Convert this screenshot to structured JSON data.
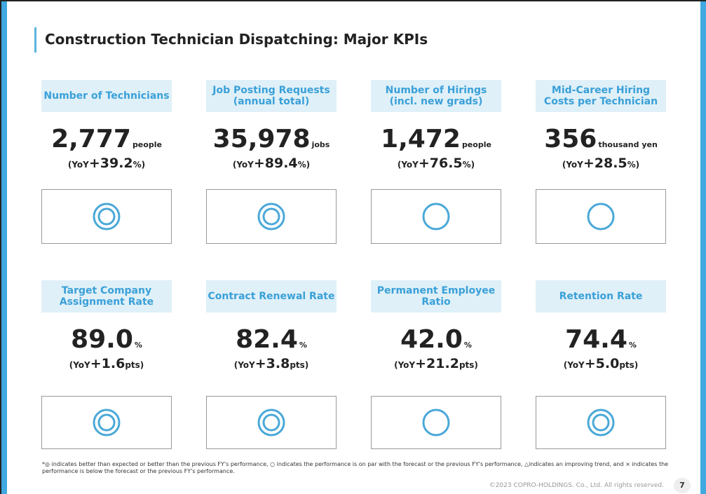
{
  "header": {
    "title": "Construction Technician Dispatching: Major KPIs"
  },
  "kpis": [
    {
      "label": "Number of Technicians",
      "value": "2,777",
      "unit": "people",
      "yoy": [
        "(YoY",
        "+39.2",
        "%)"
      ]
    },
    {
      "label": "Job Posting Requests (annual total)",
      "value": "35,978",
      "unit": "jobs",
      "yoy": [
        "(YoY",
        "+89.4",
        "%)"
      ]
    },
    {
      "label": "Number of Hirings (incl. new grads)",
      "value": "1,472",
      "unit": "people",
      "yoy": [
        "(YoY",
        "+76.5",
        "%)"
      ]
    },
    {
      "label": "Mid-Career Hiring Costs per Technician",
      "value": "356",
      "unit": "thousand yen",
      "yoy": [
        "(YoY",
        "+28.5",
        "%)"
      ]
    },
    {
      "label": "Target Company Assignment Rate",
      "value": "89.0",
      "unit": "%",
      "yoy": [
        "(YoY",
        "+1.6",
        "pts)"
      ]
    },
    {
      "label": "Contract Renewal Rate",
      "value": "82.4",
      "unit": "%",
      "yoy": [
        "(YoY",
        "+3.8",
        "pts)"
      ]
    },
    {
      "label": "Permanent Employee Ratio",
      "value": "42.0",
      "unit": "%",
      "yoy": [
        "(YoY",
        "+21.2",
        "pts)"
      ]
    },
    {
      "label": "Retention Rate",
      "value": "74.4",
      "unit": "%",
      "yoy": [
        "(YoY",
        "+5.0",
        "pts)"
      ]
    }
  ],
  "footnote": "*◎ indicates better than expected or better than the previous FY's performance, ○ indicates the performance is on par with the forecast or the previous FY's performance, △indicates an improving trend, and × indicates the performance is below the forecast or the previous FY's performance.",
  "footer": {
    "copyright": "©2023 COPRO-HOLDINGS. Co., Ltd. All rights reserved.",
    "page": "7"
  }
}
